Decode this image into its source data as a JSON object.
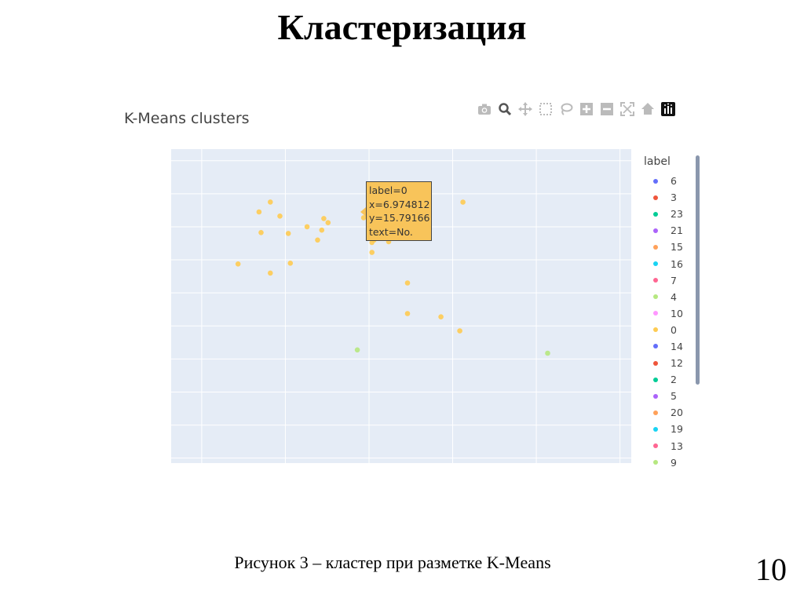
{
  "slide": {
    "title": "Кластеризация",
    "caption": "Рисунок 3 – кластер при разметке K-Means",
    "page_number": "10"
  },
  "modebar": {
    "icons": [
      "camera-icon",
      "zoom-icon",
      "pan-icon",
      "box-select-icon",
      "lasso-select-icon",
      "zoom-in-icon",
      "zoom-out-icon",
      "autoscale-icon",
      "reset-axes-icon",
      "plotly-logo-icon"
    ]
  },
  "tooltip": {
    "lines": [
      "label=0",
      "x=6.974812",
      "y=15.79166",
      "text=No."
    ],
    "color": "#f8c45a"
  },
  "chart_data": {
    "type": "scatter",
    "title": "K-Means clusters",
    "legend_title": "label",
    "legend_position": "right",
    "grid": true,
    "background": "#e5ecf6",
    "xlim": [
      0,
      11
    ],
    "ylim": [
      0,
      19
    ],
    "legend": [
      {
        "name": "6",
        "color": "#636efa"
      },
      {
        "name": "3",
        "color": "#ef553b"
      },
      {
        "name": "23",
        "color": "#00cc96"
      },
      {
        "name": "21",
        "color": "#ab63fa"
      },
      {
        "name": "15",
        "color": "#ffa15a"
      },
      {
        "name": "16",
        "color": "#19d3f3"
      },
      {
        "name": "7",
        "color": "#ff6692"
      },
      {
        "name": "4",
        "color": "#b6e880"
      },
      {
        "name": "10",
        "color": "#ff97ff"
      },
      {
        "name": "0",
        "color": "#fecb52"
      },
      {
        "name": "14",
        "color": "#636efa"
      },
      {
        "name": "12",
        "color": "#ef553b"
      },
      {
        "name": "2",
        "color": "#00cc96"
      },
      {
        "name": "5",
        "color": "#ab63fa"
      },
      {
        "name": "20",
        "color": "#ffa15a"
      },
      {
        "name": "19",
        "color": "#19d3f3"
      },
      {
        "name": "13",
        "color": "#ff6692"
      },
      {
        "name": "9",
        "color": "#b6e880"
      }
    ],
    "series": [
      {
        "name": "0",
        "color": "#fecb52",
        "points": [
          {
            "x": 2.37,
            "y": 15.8
          },
          {
            "x": 2.1,
            "y": 15.2
          },
          {
            "x": 2.6,
            "y": 14.95
          },
          {
            "x": 2.15,
            "y": 13.95
          },
          {
            "x": 2.8,
            "y": 13.9
          },
          {
            "x": 3.25,
            "y": 14.3
          },
          {
            "x": 3.6,
            "y": 14.1
          },
          {
            "x": 3.65,
            "y": 14.8
          },
          {
            "x": 3.75,
            "y": 14.55
          },
          {
            "x": 3.5,
            "y": 13.5
          },
          {
            "x": 4.6,
            "y": 14.85
          },
          {
            "x": 4.85,
            "y": 13.5
          },
          {
            "x": 4.8,
            "y": 13.35
          },
          {
            "x": 4.8,
            "y": 12.75
          },
          {
            "x": 5.2,
            "y": 13.4
          },
          {
            "x": 1.6,
            "y": 12.05
          },
          {
            "x": 2.37,
            "y": 11.5
          },
          {
            "x": 2.85,
            "y": 12.1
          },
          {
            "x": 5.65,
            "y": 10.9
          },
          {
            "x": 5.65,
            "y": 9.05
          },
          {
            "x": 6.45,
            "y": 8.85
          },
          {
            "x": 6.9,
            "y": 8.0
          },
          {
            "x": 6.974812,
            "y": 15.79166
          }
        ]
      },
      {
        "name": "9",
        "color": "#b6e880",
        "points": [
          {
            "x": 4.45,
            "y": 6.85
          },
          {
            "x": 9.0,
            "y": 6.65
          }
        ]
      }
    ]
  }
}
